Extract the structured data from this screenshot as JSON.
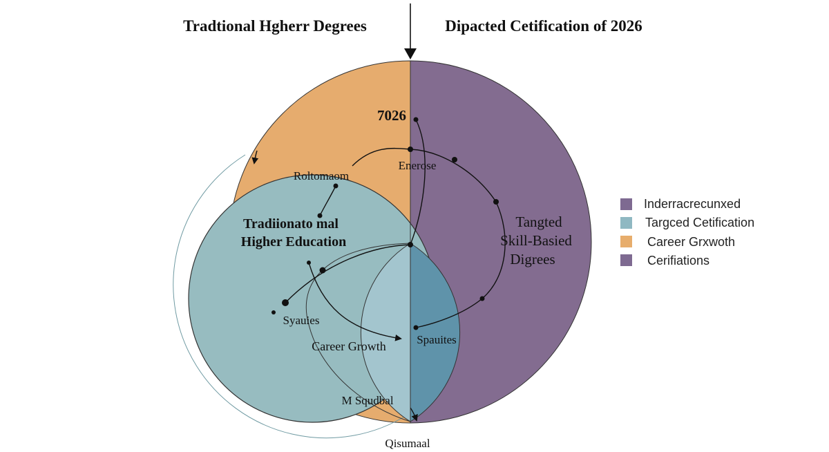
{
  "header": {
    "left_title": "Tradtional Hgherr Degrees",
    "right_title": "Dipacted Cetification of 2026"
  },
  "regions": {
    "top_year": "7026",
    "left_main_line1": "Tradiionato mal",
    "left_main_line2": "Higher Education",
    "right_main_line1": "Tangted",
    "right_main_line2": "Skill-Basied",
    "right_main_line3": "Digrees"
  },
  "labels": {
    "enerose": "Enerose",
    "roltomaom": "Roltomaom",
    "syauies": "Syauies",
    "career_growth": "Career Growth",
    "spauites": "Spauites",
    "m_squdbal": "M Squdbal",
    "qisumaal": "Qisumaal"
  },
  "legend": {
    "items": [
      {
        "label": "Inderracrecunxed",
        "color": "#7e6a91"
      },
      {
        "label": "Targced Cetification",
        "color": "#8fb8c2"
      },
      {
        "label": "Career Grxwoth",
        "color": "#e7ad6c"
      },
      {
        "label": "Cerifiations",
        "color": "#7e6a91"
      }
    ]
  },
  "colors": {
    "orange": "#e6ac6e",
    "purple": "#836c90",
    "teal": "#97bcc0",
    "teal_light": "#a3c5ce",
    "blue_overlap": "#5f93aa",
    "outline": "#333333"
  }
}
